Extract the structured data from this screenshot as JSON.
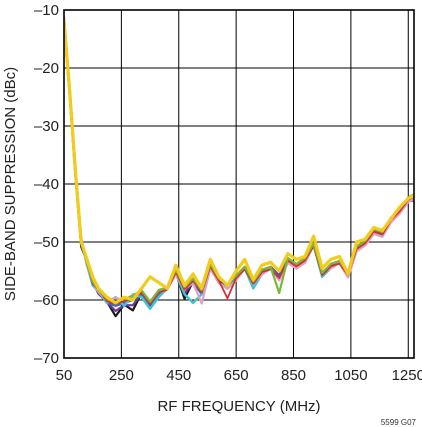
{
  "chart_data": {
    "type": "line",
    "title": "",
    "xlabel": "RF FREQUENCY (MHz)",
    "ylabel": "SIDE-BAND SUPPRESSION (dBc)",
    "xlim": [
      50,
      1270
    ],
    "ylim": [
      -70,
      -10
    ],
    "xticks": [
      50,
      250,
      450,
      650,
      850,
      1050,
      1250
    ],
    "yticks": [
      -10,
      -20,
      -30,
      -40,
      -50,
      -60,
      -70
    ],
    "xtick_labels": [
      "50",
      "250",
      "450",
      "650",
      "850",
      "1050",
      "1250"
    ],
    "ytick_labels": [
      "–10",
      "–20",
      "–30",
      "–40",
      "–50",
      "–60",
      "–70"
    ],
    "grid": true,
    "legend": "none",
    "figure_code": "5599 G07",
    "series": [
      {
        "color": "#1a1a1a",
        "offset": -0.8,
        "width": 2.2,
        "x": [
          50,
          70,
          90,
          110,
          130,
          150,
          170,
          200,
          230,
          260,
          290,
          320,
          350,
          380,
          410,
          440,
          470,
          500,
          530,
          560,
          590,
          620,
          650,
          680,
          710,
          740,
          770,
          800,
          830,
          860,
          890,
          920,
          950,
          980,
          1010,
          1040,
          1070,
          1100,
          1130,
          1160,
          1190,
          1220,
          1250,
          1270
        ],
        "y": [
          -12,
          -24,
          -38,
          -50,
          -52.5,
          -56,
          -58,
          -59.5,
          -62,
          -60,
          -61,
          -58,
          -60.5,
          -58,
          -57,
          -54.5,
          -59,
          -56,
          -58,
          -53,
          -56,
          -57,
          -55,
          -53.5,
          -56,
          -54,
          -53.5,
          -55,
          -52,
          -53,
          -52,
          -49.5,
          -55,
          -53,
          -52.5,
          -55,
          -50,
          -49,
          -47,
          -48,
          -45.5,
          -44,
          -42,
          -42
        ]
      },
      {
        "color": "#6b3aa0",
        "offset": -0.4,
        "width": 2.2,
        "x": [
          50,
          70,
          90,
          110,
          130,
          150,
          170,
          200,
          230,
          260,
          290,
          320,
          350,
          380,
          410,
          440,
          470,
          500,
          530,
          560,
          590,
          620,
          650,
          680,
          710,
          740,
          770,
          800,
          830,
          860,
          890,
          920,
          950,
          980,
          1010,
          1040,
          1070,
          1100,
          1130,
          1160,
          1190,
          1220,
          1250,
          1270
        ],
        "y": [
          -12,
          -24,
          -38,
          -50,
          -53,
          -56.5,
          -58.5,
          -60,
          -61.5,
          -60.5,
          -60.5,
          -58.5,
          -61,
          -58.5,
          -57.5,
          -55,
          -58.5,
          -56.5,
          -58.5,
          -53.5,
          -56.5,
          -57.5,
          -55.5,
          -54,
          -56.5,
          -54.5,
          -54,
          -55.5,
          -52.5,
          -53.5,
          -52.5,
          -50,
          -55.5,
          -53.5,
          -53,
          -55.5,
          -50.5,
          -49.5,
          -47.5,
          -48.5,
          -46,
          -44.5,
          -42.5,
          -42.5
        ]
      },
      {
        "color": "#2f6fc0",
        "offset": 0,
        "width": 2.2,
        "x": [
          50,
          70,
          90,
          110,
          130,
          150,
          170,
          200,
          230,
          260,
          290,
          320,
          350,
          380,
          410,
          440,
          470,
          500,
          530,
          560,
          590,
          620,
          650,
          680,
          710,
          740,
          770,
          800,
          830,
          860,
          890,
          920,
          950,
          980,
          1010,
          1040,
          1070,
          1100,
          1130,
          1160,
          1190,
          1220,
          1250,
          1270
        ],
        "y": [
          -12,
          -24,
          -38,
          -50,
          -53.5,
          -57,
          -58.5,
          -60.5,
          -61,
          -60.5,
          -60,
          -59,
          -61.5,
          -59,
          -58,
          -55.5,
          -58,
          -57,
          -59,
          -54,
          -57,
          -58,
          -56,
          -54.5,
          -57,
          -55,
          -54.5,
          -56,
          -53,
          -54,
          -53,
          -50.5,
          -56,
          -54,
          -53.5,
          -56,
          -51,
          -50,
          -48,
          -49,
          -46.5,
          -45,
          -43,
          -42.5
        ]
      },
      {
        "color": "#3fc4d0",
        "offset": 0.5,
        "width": 2.4,
        "x": [
          50,
          70,
          90,
          110,
          130,
          150,
          170,
          200,
          230,
          260,
          290,
          320,
          350,
          380,
          410,
          440,
          470,
          500,
          530,
          560,
          590,
          620,
          650,
          680,
          710,
          740,
          770,
          800,
          830,
          860,
          890,
          920,
          950,
          980,
          1010,
          1040,
          1070,
          1100,
          1130,
          1160,
          1190,
          1220,
          1250,
          1270
        ],
        "y": [
          -12,
          -24,
          -38,
          -50,
          -54.5,
          -58,
          -59,
          -61,
          -60,
          -61.5,
          -59.5,
          -60,
          -62,
          -60,
          -58.5,
          -56,
          -59.5,
          -61,
          -59.5,
          -55,
          -57.5,
          -58.5,
          -57,
          -55,
          -58.5,
          -56,
          -55,
          -57,
          -54,
          -55,
          -54,
          -51,
          -56.5,
          -55,
          -54,
          -56.5,
          -52,
          -51,
          -49,
          -49.5,
          -47,
          -45.5,
          -43.5,
          -43
        ]
      },
      {
        "color": "#e0a0c8",
        "offset": 0.9,
        "width": 2.2,
        "x": [
          50,
          70,
          90,
          110,
          130,
          150,
          170,
          200,
          230,
          260,
          290,
          320,
          350,
          380,
          410,
          440,
          470,
          500,
          530,
          560,
          590,
          620,
          650,
          680,
          710,
          740,
          770,
          800,
          830,
          860,
          890,
          920,
          950,
          980,
          1010,
          1040,
          1070,
          1100,
          1130,
          1160,
          1190,
          1220,
          1250,
          1270
        ],
        "y": [
          -12,
          -24,
          -38,
          -50,
          -55,
          -58,
          -59.5,
          -61,
          -60.5,
          -61,
          -60,
          -59.5,
          -61.5,
          -59.5,
          -59,
          -56.5,
          -59,
          -58,
          -61.5,
          -55.5,
          -58,
          -59,
          -57.5,
          -55.5,
          -58,
          -56.5,
          -55.5,
          -57.5,
          -54.5,
          -55.5,
          -54.5,
          -51.5,
          -56,
          -55.5,
          -54.5,
          -57,
          -52.5,
          -51.5,
          -49.5,
          -50,
          -47.5,
          -46,
          -44,
          -43.5
        ]
      },
      {
        "color": "#d83030",
        "offset": 0.3,
        "width": 1.8,
        "x": [
          50,
          70,
          90,
          110,
          130,
          150,
          170,
          200,
          230,
          260,
          290,
          320,
          350,
          380,
          410,
          440,
          470,
          500,
          530,
          560,
          590,
          620,
          650,
          680,
          710,
          740,
          770,
          800,
          830,
          860,
          890,
          920,
          950,
          980,
          1010,
          1040,
          1070,
          1100,
          1130,
          1160,
          1190,
          1220,
          1250,
          1270
        ],
        "y": [
          -12,
          -24,
          -38,
          -50,
          -54,
          -57.5,
          -58.5,
          -60.5,
          -61,
          -60.5,
          -60,
          -59,
          -61,
          -59,
          -58.5,
          -55.5,
          -58.5,
          -57,
          -59,
          -54.5,
          -57,
          -60,
          -56.5,
          -55,
          -57.5,
          -55.5,
          -55,
          -56.5,
          -53.5,
          -54.5,
          -53.5,
          -51,
          -56,
          -54.5,
          -54,
          -56,
          -51.5,
          -50.5,
          -48.5,
          -49,
          -46.5,
          -45,
          -43,
          -42.5
        ]
      },
      {
        "color": "#7ab83a",
        "offset": 0.2,
        "width": 2.2,
        "x": [
          50,
          70,
          90,
          110,
          130,
          150,
          170,
          200,
          230,
          260,
          290,
          320,
          350,
          380,
          410,
          440,
          470,
          500,
          530,
          560,
          590,
          620,
          650,
          680,
          710,
          740,
          770,
          800,
          830,
          860,
          890,
          920,
          950,
          980,
          1010,
          1040,
          1070,
          1100,
          1130,
          1160,
          1190,
          1220,
          1250,
          1270
        ],
        "y": [
          -12,
          -24,
          -38,
          -50,
          -54,
          -57,
          -58.5,
          -60,
          -60.5,
          -60,
          -59.5,
          -58.5,
          -60.5,
          -58.5,
          -58,
          -55,
          -58,
          -56.5,
          -58.5,
          -54,
          -56.5,
          -57.5,
          -56,
          -54.5,
          -57,
          -55,
          -54.5,
          -59,
          -53,
          -54,
          -53,
          -50.5,
          -55.5,
          -54,
          -53.5,
          -55.5,
          -51,
          -50,
          -48,
          -48.5,
          -46,
          -44.5,
          -42.5,
          -42
        ]
      },
      {
        "color": "#f2cc1a",
        "offset": 0,
        "width": 3.2,
        "x": [
          50,
          70,
          90,
          110,
          130,
          150,
          170,
          200,
          230,
          260,
          290,
          320,
          350,
          380,
          410,
          440,
          470,
          500,
          530,
          560,
          590,
          620,
          650,
          680,
          710,
          740,
          770,
          800,
          830,
          860,
          890,
          920,
          950,
          980,
          1010,
          1040,
          1070,
          1100,
          1130,
          1160,
          1190,
          1220,
          1250,
          1270
        ],
        "y": [
          -12,
          -24,
          -38,
          -50,
          -53,
          -56,
          -58,
          -59.5,
          -60.5,
          -59.5,
          -60,
          -58,
          -56,
          -57,
          -58,
          -54,
          -57.5,
          -55.5,
          -58,
          -53,
          -56,
          -57.5,
          -55,
          -53,
          -56.5,
          -54,
          -53.5,
          -55,
          -52,
          -53,
          -52.5,
          -49,
          -54.5,
          -53,
          -52.5,
          -55.5,
          -50,
          -49.5,
          -47.5,
          -48,
          -46,
          -44,
          -42.5,
          -42
        ]
      }
    ]
  }
}
